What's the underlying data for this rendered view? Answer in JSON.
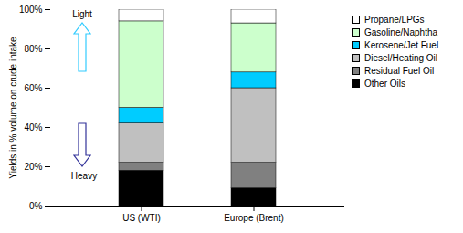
{
  "chart_data": {
    "type": "bar",
    "stacked": true,
    "ylabel": "Yields in % volume on crude intake",
    "categories": [
      "US (WTI)",
      "Europe (Brent)"
    ],
    "series": [
      {
        "name": "Other Oils",
        "color": "#000000",
        "values": [
          18,
          9
        ]
      },
      {
        "name": "Residual Fuel Oil",
        "color": "#808080",
        "values": [
          4,
          13
        ]
      },
      {
        "name": "Diesel/Heating Oil",
        "color": "#c0c0c0",
        "values": [
          20,
          38
        ]
      },
      {
        "name": "Kerosene/Jet Fuel",
        "color": "#00ccff",
        "values": [
          8,
          8
        ]
      },
      {
        "name": "Gasoline/Naphtha",
        "color": "#ccffcc",
        "values": [
          44,
          25
        ]
      },
      {
        "name": "Propane/LPGs",
        "color": "#ffffff",
        "values": [
          6,
          7
        ]
      }
    ],
    "ylim": [
      0,
      100
    ],
    "yticks": [
      {
        "value": 0,
        "label": "0%"
      },
      {
        "value": 20,
        "label": "20%"
      },
      {
        "value": 40,
        "label": "40%"
      },
      {
        "value": 60,
        "label": "60%"
      },
      {
        "value": 80,
        "label": "80%"
      },
      {
        "value": 100,
        "label": "100%"
      }
    ],
    "legend": "top-right",
    "annotations": [
      "Light",
      "Heavy"
    ]
  }
}
